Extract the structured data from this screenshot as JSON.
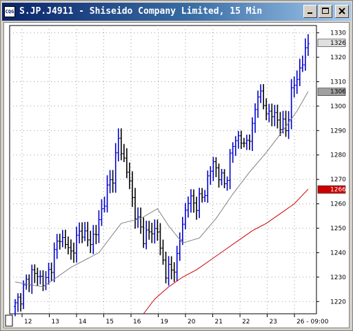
{
  "window": {
    "title": "S.JP.J4911 - Shiseido Company Limited, 15 Min",
    "icon_text": "CQG",
    "buttons": [
      "minimize-icon",
      "maximize-icon",
      "close-icon"
    ]
  },
  "chart_data": {
    "type": "bar",
    "subtype": "ohlc-price-bars",
    "title": "S.JP.J4911 - Shiseido Company Limited, 15 Min",
    "xlabel": "",
    "ylabel": "",
    "ylim": [
      1215,
      1333
    ],
    "y_ticks": [
      "1330",
      "1320",
      "1310",
      "1300",
      "1290",
      "1280",
      "1270",
      "1260",
      "1250",
      "1240",
      "1230",
      "1220"
    ],
    "x_ticks": [
      "12",
      "13",
      "14",
      "15",
      "16",
      "19",
      "20",
      "21",
      "22",
      "23",
      "26 - 09:00"
    ],
    "grid": true,
    "colors": {
      "up": "#0000cc",
      "down": "#000000",
      "ma_fast": "#808080",
      "ma_slow": "#cc0000"
    },
    "price_tags": [
      {
        "label": "1326",
        "value": 1326,
        "color": "#000000",
        "bg": "#e0e0e0"
      },
      {
        "label": "1306",
        "value": 1306,
        "color": "#000000",
        "bg": "#a0a0a0"
      },
      {
        "label": "1266",
        "value": 1266,
        "color": "#ffffff",
        "bg": "#cc0000"
      }
    ],
    "price_path": [
      [
        0,
        1218
      ],
      [
        6,
        1232
      ],
      [
        11,
        1228
      ],
      [
        16,
        1247
      ],
      [
        20,
        1240
      ],
      [
        24,
        1250
      ],
      [
        26,
        1244
      ],
      [
        29,
        1248
      ],
      [
        32,
        1262
      ],
      [
        35,
        1272
      ],
      [
        37,
        1286
      ],
      [
        40,
        1274
      ],
      [
        42,
        1262
      ],
      [
        44,
        1252
      ],
      [
        46,
        1247
      ],
      [
        48,
        1248
      ],
      [
        51,
        1250
      ],
      [
        52,
        1240
      ],
      [
        54,
        1233
      ],
      [
        56,
        1232
      ],
      [
        58,
        1238
      ],
      [
        60,
        1252
      ],
      [
        62,
        1262
      ],
      [
        64,
        1260
      ],
      [
        67,
        1262
      ],
      [
        69,
        1270
      ],
      [
        71,
        1277
      ],
      [
        73,
        1272
      ],
      [
        75,
        1268
      ],
      [
        77,
        1278
      ],
      [
        79,
        1288
      ],
      [
        82,
        1284
      ],
      [
        85,
        1290
      ],
      [
        87,
        1307
      ],
      [
        89,
        1300
      ],
      [
        91,
        1297
      ],
      [
        93,
        1296
      ],
      [
        95,
        1293
      ],
      [
        97,
        1290
      ],
      [
        99,
        1305
      ],
      [
        101,
        1312
      ],
      [
        103,
        1318
      ],
      [
        105,
        1326
      ]
    ],
    "series": [
      {
        "name": "",
        "points": [
          [
            0,
            1228
          ],
          [
            10,
            1226
          ],
          [
            20,
            1234
          ],
          [
            30,
            1240
          ],
          [
            38,
            1252
          ],
          [
            45,
            1254
          ],
          [
            51,
            1258
          ],
          [
            55,
            1251
          ],
          [
            60,
            1244
          ],
          [
            66,
            1246
          ],
          [
            72,
            1254
          ],
          [
            78,
            1264
          ],
          [
            84,
            1273
          ],
          [
            90,
            1281
          ],
          [
            96,
            1290
          ],
          [
            101,
            1298
          ],
          [
            105,
            1306
          ]
        ]
      },
      {
        "name": "",
        "points": [
          [
            46,
            1215
          ],
          [
            50,
            1221
          ],
          [
            55,
            1226
          ],
          [
            60,
            1230
          ],
          [
            65,
            1233
          ],
          [
            70,
            1237
          ],
          [
            75,
            1241
          ],
          [
            80,
            1245
          ],
          [
            85,
            1249
          ],
          [
            90,
            1252
          ],
          [
            95,
            1256
          ],
          [
            100,
            1260
          ],
          [
            105,
            1266
          ]
        ]
      }
    ]
  }
}
